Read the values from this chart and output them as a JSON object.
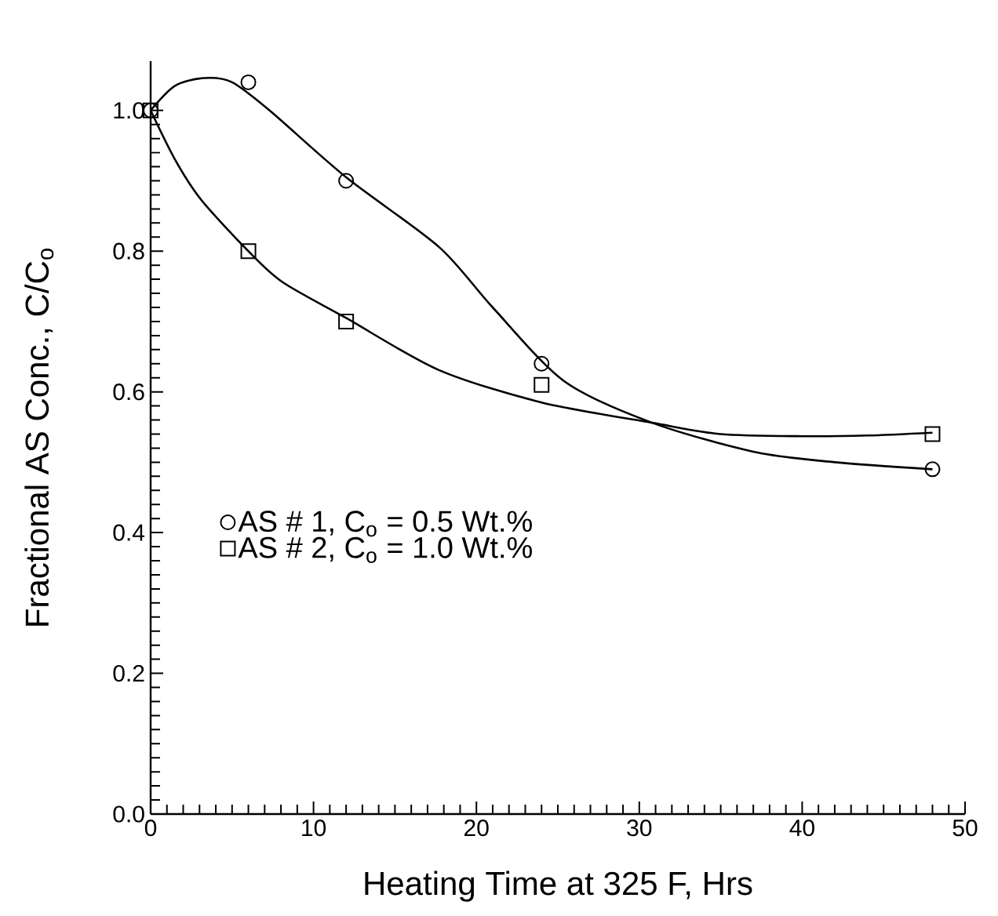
{
  "chart_data": {
    "type": "scatter",
    "xlabel": "Heating Time at 325 F, Hrs",
    "ylabel": "Fractional AS Conc., C/C$_{o}$",
    "xlim": [
      0,
      50
    ],
    "ylim": [
      0,
      1.07
    ],
    "xticks": [
      0,
      10,
      20,
      30,
      40,
      50
    ],
    "yticks": [
      {
        "value": 0,
        "label": "0.0"
      },
      {
        "value": 0.2,
        "label": "0.2"
      },
      {
        "value": 0.4,
        "label": "0.4"
      },
      {
        "value": 0.6,
        "label": "0.6"
      },
      {
        "value": 0.8,
        "label": "0.8"
      },
      {
        "value": 1.0,
        "label": "1.0"
      }
    ],
    "legend": "left",
    "grid": false,
    "line_style": "solid",
    "series": [
      {
        "name": "AS # 1, C$_{o}$ = 0.5 Wt.%",
        "marker": "circle",
        "color": "#000000",
        "x": [
          0,
          6,
          12,
          24,
          48
        ],
        "values": [
          1.0,
          1.04,
          0.9,
          0.64,
          0.49
        ]
      },
      {
        "name": "AS # 2, C$_{o}$ = 1.0 Wt.%",
        "marker": "square",
        "color": "#000000",
        "x": [
          0,
          6,
          12,
          24,
          48
        ],
        "values": [
          1.0,
          0.8,
          0.7,
          0.61,
          0.54
        ]
      },
      {
        "type": "line",
        "marker": "none",
        "color": "#000000",
        "x": [
          0,
          1.5,
          3.3,
          5,
          7.3,
          12,
          17.7,
          21,
          25.4,
          30.8,
          37,
          42,
          48
        ],
        "values": [
          1.0,
          1.035,
          1.046,
          1.04,
          1.0,
          0.905,
          0.806,
          0.72,
          0.615,
          0.556,
          0.515,
          0.5,
          0.49
        ]
      },
      {
        "type": "line",
        "marker": "none",
        "color": "#000000",
        "x": [
          0,
          1.5,
          3.1,
          6,
          8.1,
          12,
          17.7,
          24,
          30.8,
          35,
          40,
          44,
          48
        ],
        "values": [
          1.0,
          0.93,
          0.873,
          0.8,
          0.756,
          0.705,
          0.631,
          0.585,
          0.556,
          0.54,
          0.537,
          0.538,
          0.542
        ]
      }
    ]
  }
}
